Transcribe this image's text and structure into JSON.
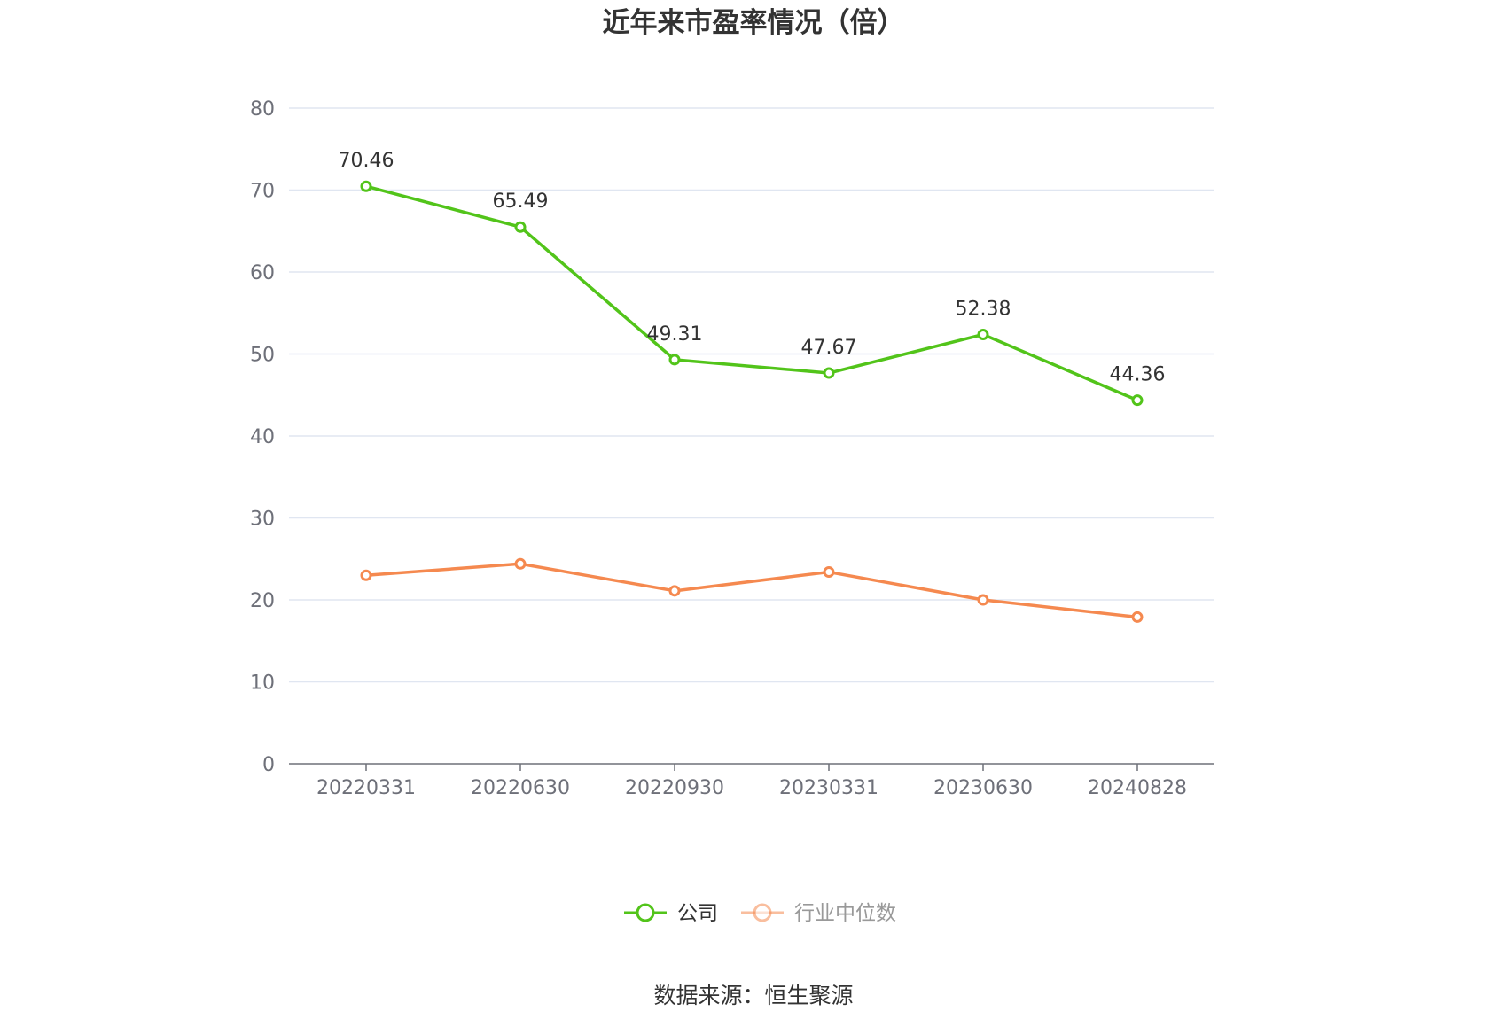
{
  "chart_data": {
    "type": "line",
    "title": "近年来市盈率情况（倍）",
    "categories": [
      "20220331",
      "20220630",
      "20220930",
      "20230331",
      "20230630",
      "20240828"
    ],
    "series": [
      {
        "name": "公司",
        "color": "#52c41a",
        "values": [
          70.46,
          65.49,
          49.31,
          47.67,
          52.38,
          44.36
        ],
        "labels": [
          "70.46",
          "65.49",
          "49.31",
          "47.67",
          "52.38",
          "44.36"
        ]
      },
      {
        "name": "行业中位数",
        "color": "#f5894f",
        "values": [
          23.0,
          24.4,
          21.1,
          23.4,
          20.0,
          17.9
        ]
      }
    ],
    "ylim": [
      0,
      80
    ],
    "yticks": [
      0,
      10,
      20,
      30,
      40,
      50,
      60,
      70,
      80
    ],
    "grid": true,
    "legend_position": "bottom"
  },
  "source_text": "数据来源：恒生聚源"
}
